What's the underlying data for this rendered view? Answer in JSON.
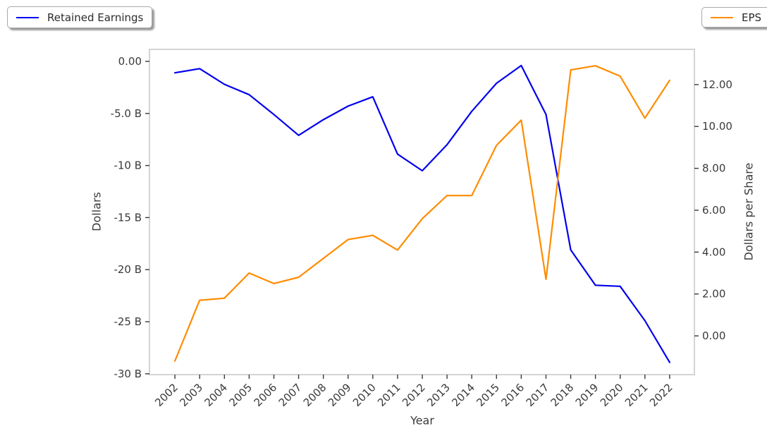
{
  "page": {
    "background": "#ffffff"
  },
  "legends": [
    {
      "label": "Retained Earnings",
      "color": "#0000ee"
    },
    {
      "label": "EPS",
      "color": "#ff8c00"
    }
  ],
  "chart_data": {
    "type": "line",
    "title": "",
    "xlabel": "Year",
    "ylabel_left": "Dollars",
    "ylabel_right": "Dollars per Share",
    "grid": false,
    "legend_position": "outside top-left (Retained Earnings) and outside top-right (EPS)",
    "x": [
      2002,
      2003,
      2004,
      2005,
      2006,
      2007,
      2008,
      2009,
      2010,
      2011,
      2012,
      2013,
      2014,
      2015,
      2016,
      2017,
      2018,
      2019,
      2020,
      2021,
      2022
    ],
    "series": [
      {
        "name": "Retained Earnings",
        "axis": "left",
        "color": "#0000ee",
        "unit": "billions of dollars",
        "values": [
          -1.1,
          -0.7,
          -2.2,
          -3.2,
          -5.1,
          -7.1,
          -5.6,
          -4.3,
          -3.4,
          -8.9,
          -10.5,
          -8.0,
          -4.8,
          -2.1,
          -0.4,
          -5.1,
          -18.1,
          -21.5,
          -21.6,
          -24.9,
          -28.9
        ]
      },
      {
        "name": "EPS",
        "axis": "right",
        "color": "#ff8c00",
        "unit": "dollars per share",
        "values": [
          -1.2,
          1.7,
          1.8,
          3.0,
          2.5,
          2.8,
          3.7,
          4.6,
          4.8,
          4.1,
          5.6,
          6.7,
          6.7,
          9.1,
          10.3,
          2.7,
          12.7,
          12.9,
          12.4,
          10.4,
          12.2
        ]
      }
    ],
    "x_domain": [
      2000.97,
      2023.0
    ],
    "y_left_domain": [
      -30.08,
      1.15
    ],
    "y_right_domain": [
      -1.85,
      13.68
    ],
    "y_left_ticks": [
      {
        "v": 0,
        "label": "0.00"
      },
      {
        "v": -5,
        "label": "-5.0 B"
      },
      {
        "v": -10,
        "label": "-10 B"
      },
      {
        "v": -15,
        "label": "-15 B"
      },
      {
        "v": -20,
        "label": "-20 B"
      },
      {
        "v": -25,
        "label": "-25 B"
      },
      {
        "v": -30,
        "label": "-30 B"
      }
    ],
    "y_right_ticks": [
      {
        "v": 12,
        "label": "12.00"
      },
      {
        "v": 10,
        "label": "10.00"
      },
      {
        "v": 8,
        "label": "8.00"
      },
      {
        "v": 6,
        "label": "6.00"
      },
      {
        "v": 4,
        "label": "4.00"
      },
      {
        "v": 2,
        "label": "2.00"
      },
      {
        "v": 0,
        "label": "0.00"
      }
    ]
  }
}
